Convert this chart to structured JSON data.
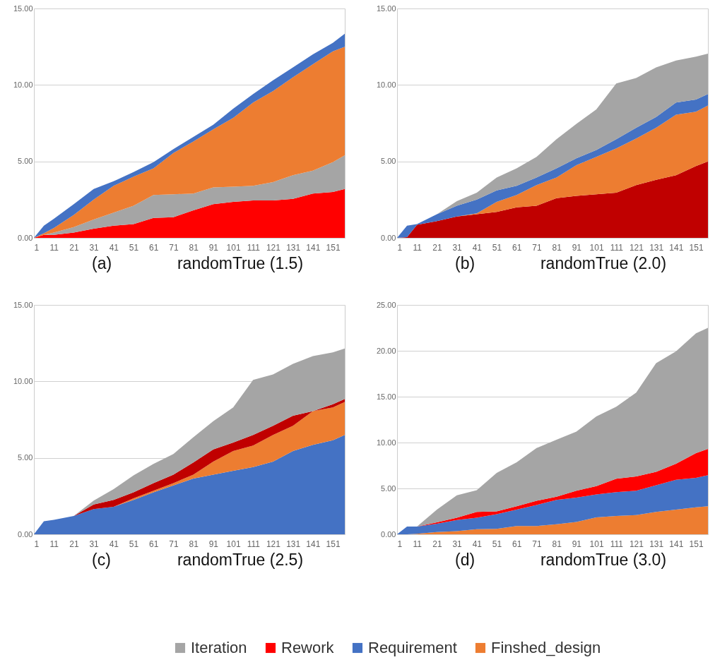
{
  "chart_data": [
    {
      "type": "area",
      "title": "randomTrue (1.5)",
      "annotations": [
        "(a)"
      ],
      "stacked": true,
      "grid": "y",
      "legend": false,
      "x": [
        1,
        6,
        11,
        21,
        31,
        41,
        51,
        61,
        71,
        81,
        91,
        101,
        111,
        121,
        131,
        141,
        151,
        157
      ],
      "xlim": [
        1,
        157
      ],
      "xticks": [
        1,
        11,
        21,
        31,
        41,
        51,
        61,
        71,
        81,
        91,
        101,
        111,
        121,
        131,
        141,
        151
      ],
      "ylim": [
        0,
        15
      ],
      "yticks": [
        {
          "value": 0,
          "label": "0.00"
        },
        {
          "value": 5,
          "label": "5.00"
        },
        {
          "value": 10,
          "label": "10.00"
        },
        {
          "value": 15,
          "label": "15.00"
        }
      ],
      "series": [
        {
          "color": "#ff0000",
          "values": [
            0,
            0.2,
            0.2,
            0.35,
            0.6,
            0.8,
            0.9,
            1.3,
            1.35,
            1.8,
            2.2,
            2.35,
            2.45,
            2.45,
            2.55,
            2.9,
            3.0,
            3.2
          ]
        },
        {
          "color": "#a5a5a5",
          "values": [
            0,
            0,
            0.15,
            0.35,
            0.6,
            0.85,
            1.2,
            1.5,
            1.5,
            1.1,
            1.1,
            1.0,
            0.95,
            1.2,
            1.55,
            1.5,
            1.95,
            2.2
          ]
        },
        {
          "color": "#ed7d31",
          "values": [
            0,
            0.1,
            0.3,
            0.8,
            1.3,
            1.75,
            1.9,
            1.75,
            2.7,
            3.4,
            3.8,
            4.5,
            5.45,
            5.95,
            6.4,
            6.95,
            7.25,
            7.1
          ]
        },
        {
          "color": "#4472c4",
          "values": [
            0,
            0.5,
            0.6,
            0.7,
            0.7,
            0.3,
            0.3,
            0.4,
            0.25,
            0.3,
            0.3,
            0.6,
            0.55,
            0.7,
            0.65,
            0.65,
            0.55,
            0.85
          ]
        }
      ]
    },
    {
      "type": "area",
      "title": "randomTrue (2.0)",
      "annotations": [
        "(b)"
      ],
      "stacked": true,
      "grid": "y",
      "legend": false,
      "x": [
        1,
        6,
        11,
        21,
        31,
        41,
        51,
        61,
        71,
        81,
        91,
        101,
        111,
        121,
        131,
        141,
        151,
        157
      ],
      "xlim": [
        1,
        157
      ],
      "xticks": [
        1,
        11,
        21,
        31,
        41,
        51,
        61,
        71,
        81,
        91,
        101,
        111,
        121,
        131,
        141,
        151
      ],
      "ylim": [
        0,
        15
      ],
      "yticks": [
        {
          "value": 0,
          "label": "0.00"
        },
        {
          "value": 5,
          "label": "5.00"
        },
        {
          "value": 10,
          "label": "10.00"
        },
        {
          "value": 15,
          "label": "15.00"
        }
      ],
      "series": [
        {
          "color": "#c00000",
          "values": [
            0,
            0.05,
            0.85,
            1.1,
            1.4,
            1.55,
            1.7,
            2.0,
            2.1,
            2.6,
            2.75,
            2.85,
            2.95,
            3.45,
            3.8,
            4.1,
            4.7,
            5.0
          ]
        },
        {
          "color": "#ed7d31",
          "values": [
            0,
            0,
            0,
            0,
            0,
            0.05,
            0.65,
            0.8,
            1.35,
            1.35,
            2.0,
            2.45,
            2.9,
            3.05,
            3.4,
            3.95,
            3.55,
            3.65
          ]
        },
        {
          "color": "#4472c4",
          "values": [
            0,
            0.75,
            0.05,
            0.45,
            0.7,
            0.9,
            0.75,
            0.6,
            0.5,
            0.6,
            0.45,
            0.45,
            0.6,
            0.7,
            0.7,
            0.8,
            0.8,
            0.75
          ]
        },
        {
          "color": "#a5a5a5",
          "values": [
            0,
            0,
            0,
            0,
            0.3,
            0.45,
            0.85,
            1.15,
            1.35,
            1.9,
            2.25,
            2.65,
            3.65,
            3.25,
            3.25,
            2.75,
            2.8,
            2.65
          ]
        }
      ]
    },
    {
      "type": "area",
      "title": "randomTrue (2.5)",
      "annotations": [
        "(c)"
      ],
      "stacked": true,
      "grid": "y",
      "legend": false,
      "x": [
        1,
        6,
        11,
        21,
        31,
        41,
        51,
        61,
        71,
        81,
        91,
        101,
        111,
        121,
        131,
        141,
        151,
        157
      ],
      "xlim": [
        1,
        157
      ],
      "xticks": [
        1,
        11,
        21,
        31,
        41,
        51,
        61,
        71,
        81,
        91,
        101,
        111,
        121,
        131,
        141,
        151
      ],
      "ylim": [
        0,
        15
      ],
      "yticks": [
        {
          "value": 0,
          "label": "0.00"
        },
        {
          "value": 5,
          "label": "5.00"
        },
        {
          "value": 10,
          "label": "10.00"
        },
        {
          "value": 15,
          "label": "15.00"
        }
      ],
      "series": [
        {
          "color": "#4472c4",
          "values": [
            0,
            0.85,
            0.95,
            1.2,
            1.65,
            1.8,
            2.25,
            2.75,
            3.2,
            3.65,
            3.9,
            4.15,
            4.4,
            4.75,
            5.45,
            5.85,
            6.15,
            6.5
          ]
        },
        {
          "color": "#ed7d31",
          "values": [
            0,
            0,
            0,
            0,
            0,
            0,
            0.1,
            0.1,
            0.15,
            0.25,
            0.85,
            1.3,
            1.4,
            1.75,
            1.65,
            2.2,
            2.15,
            2.15
          ]
        },
        {
          "color": "#c00000",
          "values": [
            0,
            0,
            0,
            0,
            0.3,
            0.45,
            0.4,
            0.5,
            0.55,
            0.8,
            0.8,
            0.55,
            0.7,
            0.6,
            0.65,
            0,
            0.2,
            0.2
          ]
        },
        {
          "color": "#a5a5a5",
          "values": [
            0,
            0,
            0,
            0,
            0.25,
            0.7,
            1.1,
            1.25,
            1.35,
            1.65,
            1.85,
            2.3,
            3.6,
            3.35,
            3.4,
            3.6,
            3.4,
            3.3
          ]
        }
      ]
    },
    {
      "type": "area",
      "title": "randomTrue (3.0)",
      "annotations": [
        "(d)"
      ],
      "stacked": true,
      "grid": "y",
      "legend": "bottom",
      "x": [
        1,
        6,
        11,
        21,
        31,
        41,
        51,
        61,
        71,
        81,
        91,
        101,
        111,
        121,
        131,
        141,
        151,
        157
      ],
      "xlim": [
        1,
        157
      ],
      "xticks": [
        1,
        11,
        21,
        31,
        41,
        51,
        61,
        71,
        81,
        91,
        101,
        111,
        121,
        131,
        141,
        151
      ],
      "ylim": [
        0,
        25
      ],
      "yticks": [
        {
          "value": 0,
          "label": "0.00"
        },
        {
          "value": 5,
          "label": "5.00"
        },
        {
          "value": 10,
          "label": "10.00"
        },
        {
          "value": 15,
          "label": "15.00"
        },
        {
          "value": 20,
          "label": "20.00"
        },
        {
          "value": 25,
          "label": "25.00"
        }
      ],
      "series": [
        {
          "name": "Finshed_design",
          "color": "#ed7d31",
          "values": [
            0,
            0,
            0.05,
            0.25,
            0.35,
            0.55,
            0.6,
            0.9,
            0.9,
            1.1,
            1.35,
            1.85,
            2.0,
            2.1,
            2.45,
            2.7,
            2.95,
            3.05
          ]
        },
        {
          "name": "Requirement",
          "color": "#4472c4",
          "values": [
            0,
            0.85,
            0.8,
            0.9,
            1.2,
            1.25,
            1.6,
            1.8,
            2.3,
            2.65,
            2.65,
            2.5,
            2.6,
            2.65,
            2.9,
            3.25,
            3.2,
            3.4
          ]
        },
        {
          "name": "Rework",
          "color": "#ff0000",
          "values": [
            0,
            0,
            0,
            0.15,
            0.25,
            0.65,
            0.3,
            0.35,
            0.45,
            0.35,
            0.75,
            0.9,
            1.45,
            1.55,
            1.45,
            1.75,
            2.7,
            2.85
          ]
        },
        {
          "name": "Iteration",
          "color": "#a5a5a5",
          "values": [
            0,
            0,
            0,
            1.4,
            2.45,
            2.35,
            4.2,
            4.8,
            5.75,
            6.2,
            6.45,
            7.6,
            7.85,
            9.15,
            11.85,
            12.25,
            13.05,
            13.2
          ]
        }
      ]
    }
  ]
}
